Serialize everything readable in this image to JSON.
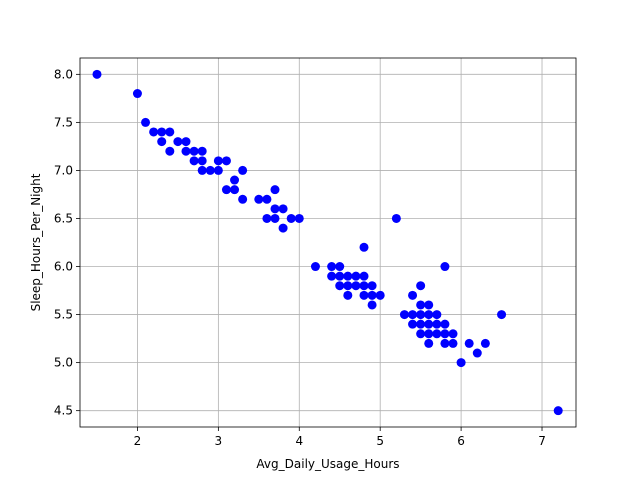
{
  "chart_data": {
    "type": "scatter",
    "xlabel": "Avg_Daily_Usage_Hours",
    "ylabel": "Sleep_Hours_Per_Night",
    "xlim": [
      1.29,
      7.42
    ],
    "ylim": [
      4.33,
      8.17
    ],
    "xticks": [
      "2",
      "3",
      "4",
      "5",
      "6",
      "7"
    ],
    "yticks": [
      "4.5",
      "5.0",
      "5.5",
      "6.0",
      "6.5",
      "7.0",
      "7.5",
      "8.0"
    ],
    "grid": true,
    "marker_color": "#0000ff",
    "points": [
      [
        1.5,
        8.0
      ],
      [
        2.0,
        7.8
      ],
      [
        2.1,
        7.5
      ],
      [
        2.2,
        7.4
      ],
      [
        2.3,
        7.4
      ],
      [
        2.3,
        7.3
      ],
      [
        2.4,
        7.4
      ],
      [
        2.4,
        7.2
      ],
      [
        2.5,
        7.3
      ],
      [
        2.6,
        7.3
      ],
      [
        2.6,
        7.2
      ],
      [
        2.7,
        7.2
      ],
      [
        2.7,
        7.1
      ],
      [
        2.8,
        7.2
      ],
      [
        2.8,
        7.1
      ],
      [
        2.8,
        7.0
      ],
      [
        2.9,
        7.0
      ],
      [
        3.0,
        7.1
      ],
      [
        3.0,
        7.0
      ],
      [
        3.1,
        7.1
      ],
      [
        3.1,
        6.8
      ],
      [
        3.2,
        6.9
      ],
      [
        3.2,
        6.8
      ],
      [
        3.3,
        7.0
      ],
      [
        3.3,
        6.7
      ],
      [
        3.5,
        6.7
      ],
      [
        3.6,
        6.7
      ],
      [
        3.6,
        6.5
      ],
      [
        3.7,
        6.8
      ],
      [
        3.7,
        6.6
      ],
      [
        3.7,
        6.5
      ],
      [
        3.8,
        6.6
      ],
      [
        3.8,
        6.4
      ],
      [
        3.9,
        6.5
      ],
      [
        4.0,
        6.5
      ],
      [
        4.2,
        6.0
      ],
      [
        4.4,
        6.0
      ],
      [
        4.4,
        5.9
      ],
      [
        4.5,
        6.0
      ],
      [
        4.5,
        5.9
      ],
      [
        4.5,
        5.8
      ],
      [
        4.6,
        5.9
      ],
      [
        4.6,
        5.8
      ],
      [
        4.6,
        5.7
      ],
      [
        4.7,
        5.9
      ],
      [
        4.7,
        5.8
      ],
      [
        4.8,
        6.2
      ],
      [
        4.8,
        5.9
      ],
      [
        4.8,
        5.8
      ],
      [
        4.8,
        5.7
      ],
      [
        4.9,
        5.8
      ],
      [
        4.9,
        5.7
      ],
      [
        4.9,
        5.6
      ],
      [
        5.0,
        5.7
      ],
      [
        5.2,
        6.5
      ],
      [
        5.3,
        5.5
      ],
      [
        5.4,
        5.7
      ],
      [
        5.4,
        5.5
      ],
      [
        5.4,
        5.4
      ],
      [
        5.5,
        5.8
      ],
      [
        5.5,
        5.6
      ],
      [
        5.5,
        5.5
      ],
      [
        5.5,
        5.4
      ],
      [
        5.5,
        5.3
      ],
      [
        5.6,
        5.6
      ],
      [
        5.6,
        5.5
      ],
      [
        5.6,
        5.4
      ],
      [
        5.6,
        5.3
      ],
      [
        5.6,
        5.2
      ],
      [
        5.7,
        5.5
      ],
      [
        5.7,
        5.4
      ],
      [
        5.7,
        5.3
      ],
      [
        5.8,
        6.0
      ],
      [
        5.8,
        5.4
      ],
      [
        5.8,
        5.3
      ],
      [
        5.8,
        5.2
      ],
      [
        5.9,
        5.3
      ],
      [
        5.9,
        5.2
      ],
      [
        6.0,
        5.0
      ],
      [
        6.1,
        5.2
      ],
      [
        6.2,
        5.1
      ],
      [
        6.3,
        5.2
      ],
      [
        6.5,
        5.5
      ],
      [
        7.2,
        4.5
      ]
    ]
  }
}
